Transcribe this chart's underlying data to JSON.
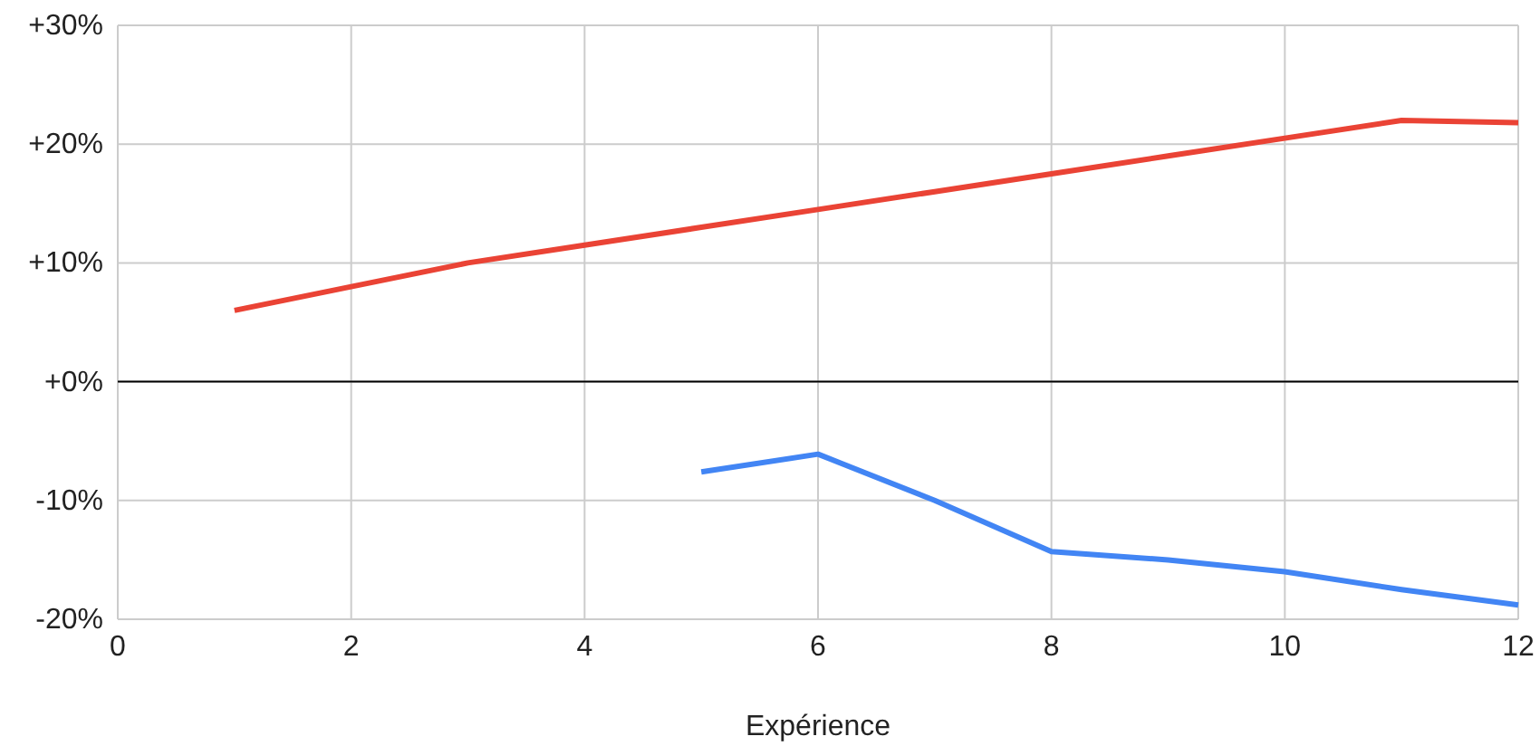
{
  "chart_data": {
    "type": "line",
    "xlabel": "Expérience",
    "xlim": [
      0,
      12
    ],
    "xticks": [
      0,
      2,
      4,
      6,
      8,
      10,
      12
    ],
    "ylim": [
      -20,
      30
    ],
    "yticks": [
      {
        "value": -20,
        "label": "-20%"
      },
      {
        "value": -10,
        "label": "-10%"
      },
      {
        "value": 0,
        "label": "+0%"
      },
      {
        "value": 10,
        "label": "+10%"
      },
      {
        "value": 20,
        "label": "+20%"
      },
      {
        "value": 30,
        "label": "+30%"
      }
    ],
    "grid": true,
    "ref_lines": [
      {
        "axis": "y",
        "value": 0,
        "color": "#000000"
      }
    ],
    "series": [
      {
        "color": "#ea4335",
        "x": [
          1,
          2,
          3,
          4,
          5,
          6,
          7,
          8,
          9,
          10,
          11,
          12
        ],
        "values": [
          6,
          8,
          10,
          11.5,
          13,
          14.5,
          16,
          17.5,
          19,
          20.5,
          22,
          21.8
        ]
      },
      {
        "color": "#4285f4",
        "x": [
          5,
          6,
          7,
          8,
          9,
          10,
          11,
          12
        ],
        "values": [
          -7.6,
          -6.1,
          -10,
          -14.3,
          -15,
          -16,
          -17.5,
          -18.8
        ]
      }
    ]
  }
}
